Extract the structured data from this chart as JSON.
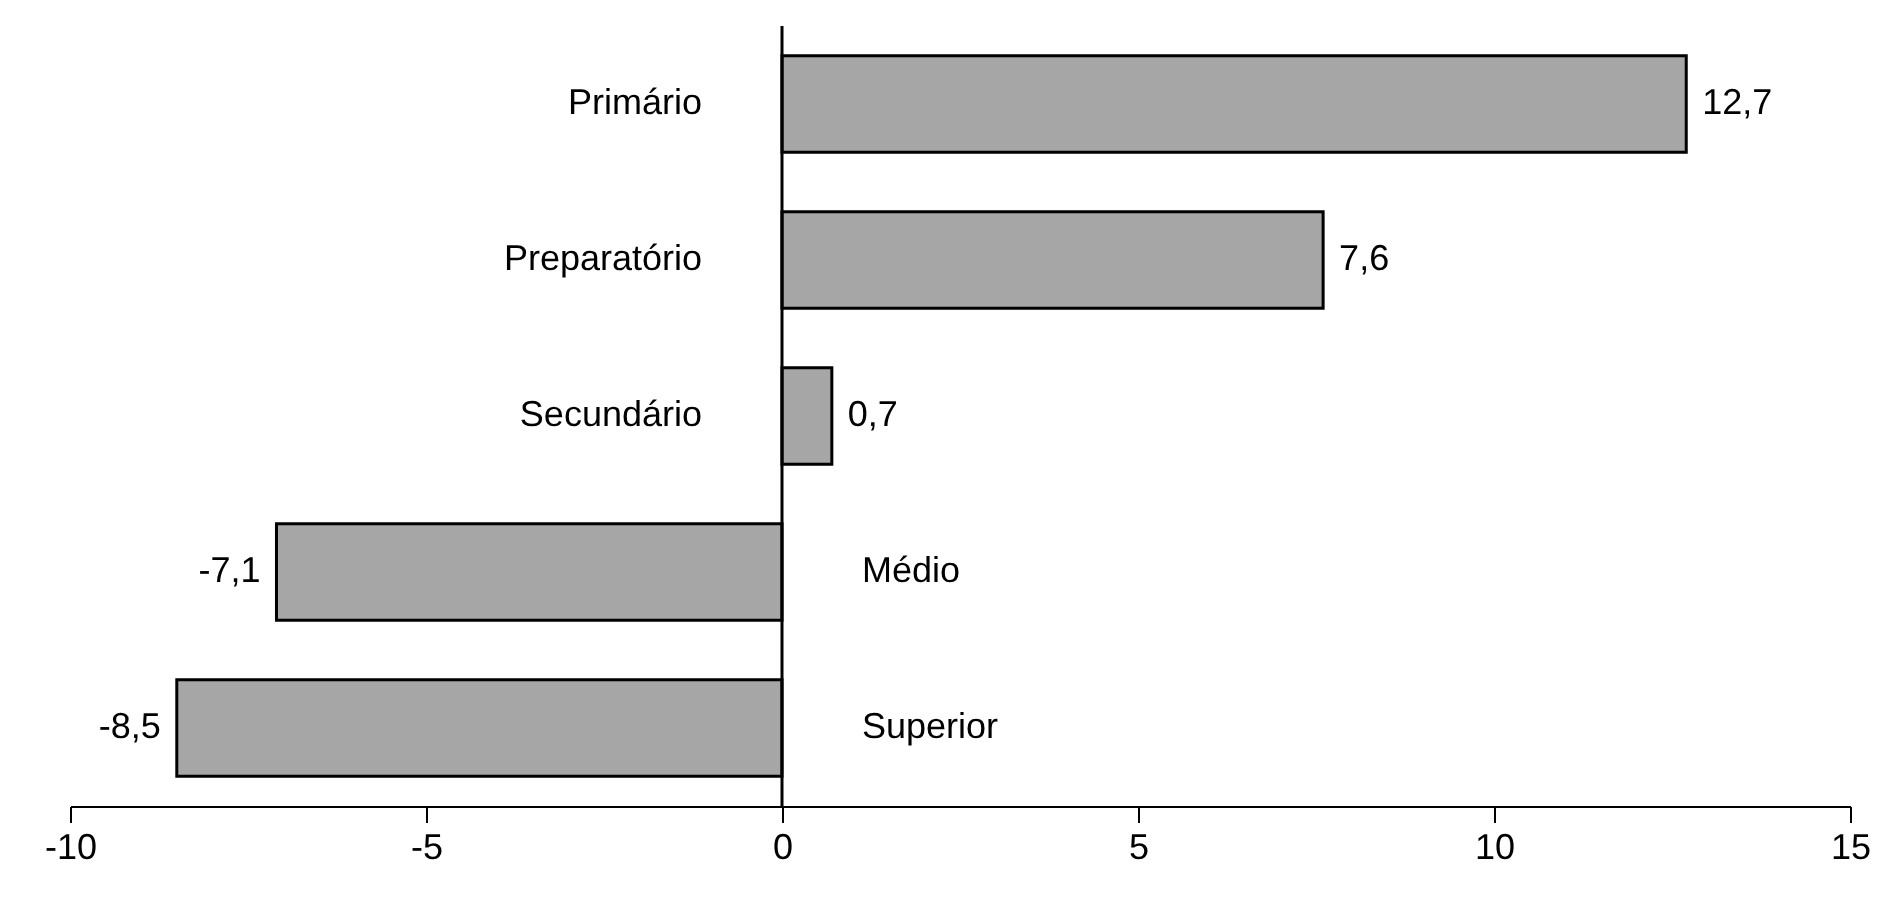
{
  "chart_data": {
    "type": "bar",
    "orientation": "horizontal",
    "categories": [
      "Primário",
      "Preparatório",
      "Secundário",
      "Médio",
      "Superior"
    ],
    "values": [
      12.7,
      7.6,
      0.7,
      -7.1,
      -8.5
    ],
    "value_labels": [
      "12,7",
      "7,6",
      "0,7",
      "-7,1",
      "-8,5"
    ],
    "color": "#a6a6a6",
    "xlim": [
      -10,
      15
    ],
    "xticks": [
      -10,
      -5,
      0,
      5,
      10,
      15
    ],
    "grid": false
  }
}
